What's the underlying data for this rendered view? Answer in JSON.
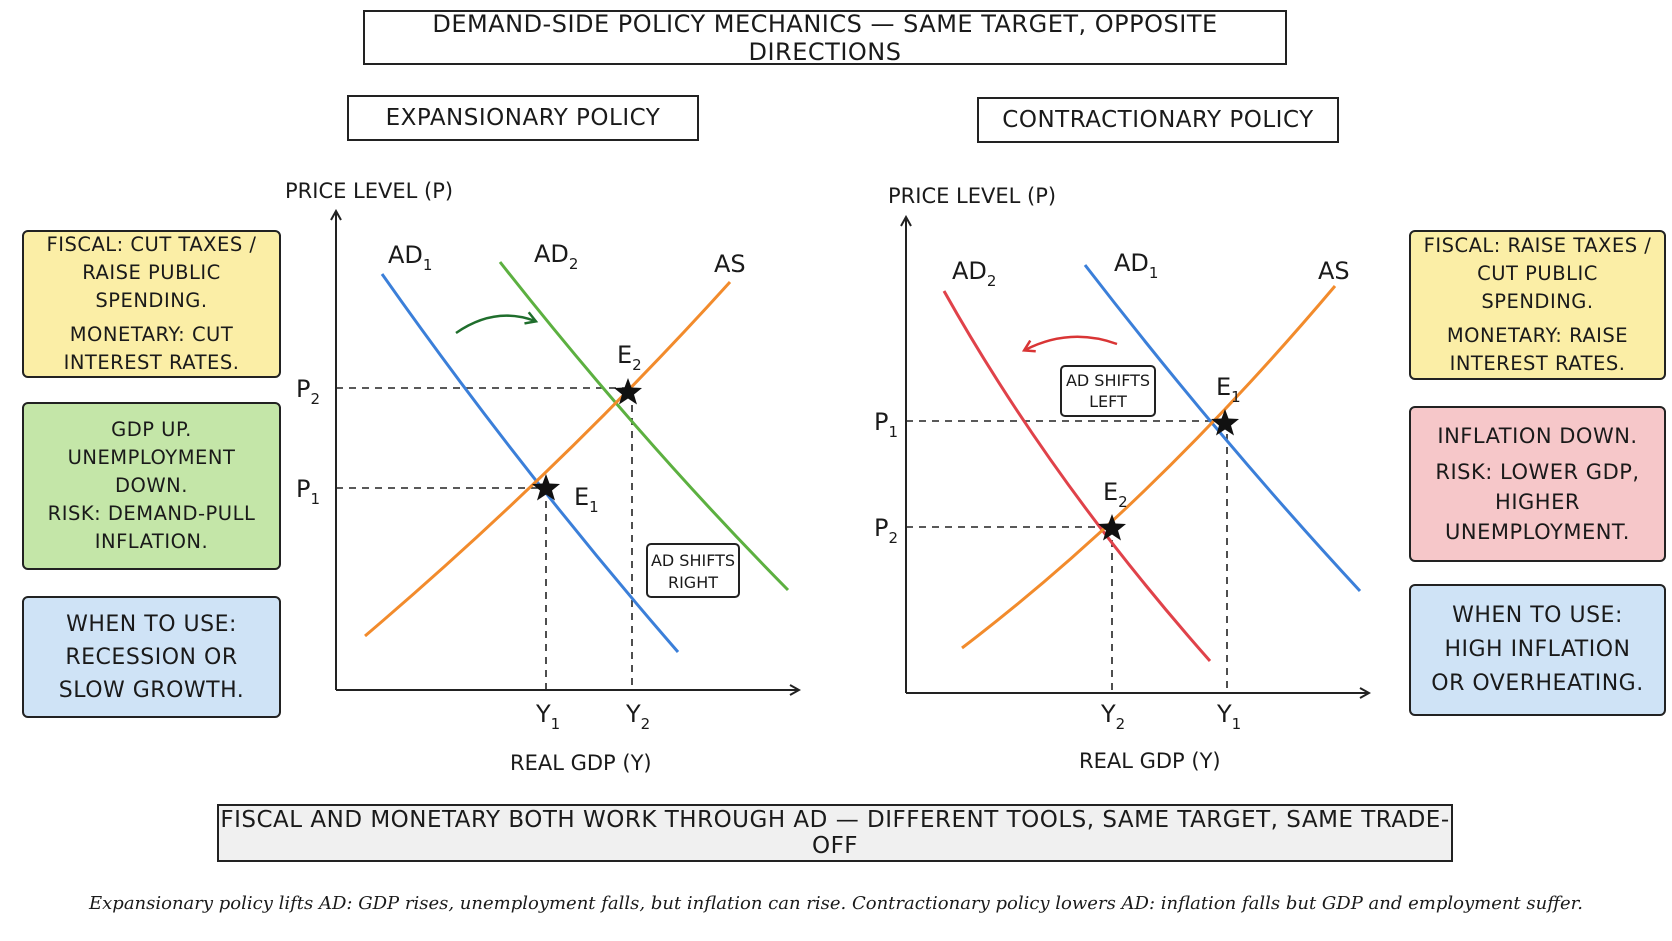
{
  "title": "DEMAND-SIDE POLICY MECHANICS — SAME TARGET, OPPOSITE DIRECTIONS",
  "panels": {
    "expansionary": {
      "title": "EXPANSIONARY POLICY",
      "y_axis_label": "PRICE LEVEL (P)",
      "x_axis_label": "REAL GDP (Y)",
      "curves": {
        "ad_old": "AD",
        "ad_old_sub": "1",
        "ad_new": "AD",
        "ad_new_sub": "2",
        "as": "AS"
      },
      "points": {
        "e_first": "E",
        "e_first_sub": "1",
        "e_second": "E",
        "e_second_sub": "2"
      },
      "ticks": {
        "p_low": "P",
        "p_low_sub": "1",
        "p_high": "P",
        "p_high_sub": "2",
        "y_left": "Y",
        "y_left_sub": "1",
        "y_right": "Y",
        "y_right_sub": "2"
      },
      "shift_label_line1": "AD SHIFTS",
      "shift_label_line2": "RIGHT",
      "notes": {
        "tools": [
          "FISCAL: CUT TAXES /",
          "RAISE PUBLIC SPENDING."
        ],
        "tools_monetary": [
          "MONETARY: CUT",
          "INTEREST RATES."
        ],
        "effects": [
          "GDP UP.",
          "UNEMPLOYMENT",
          "DOWN.",
          "RISK: DEMAND-PULL",
          "INFLATION."
        ],
        "when": [
          "WHEN TO USE:",
          "RECESSION OR",
          "SLOW GROWTH."
        ]
      }
    },
    "contractionary": {
      "title": "CONTRACTIONARY POLICY",
      "y_axis_label": "PRICE LEVEL (P)",
      "x_axis_label": "REAL GDP (Y)",
      "curves": {
        "ad_new": "AD",
        "ad_new_sub": "2",
        "ad_old": "AD",
        "ad_old_sub": "1",
        "as": "AS"
      },
      "points": {
        "e_first": "E",
        "e_first_sub": "1",
        "e_second": "E",
        "e_second_sub": "2"
      },
      "ticks": {
        "p_high": "P",
        "p_high_sub": "1",
        "p_low": "P",
        "p_low_sub": "2",
        "y_left": "Y",
        "y_left_sub": "2",
        "y_right": "Y",
        "y_right_sub": "1"
      },
      "shift_label_line1": "AD SHIFTS",
      "shift_label_line2": "LEFT",
      "notes": {
        "tools": [
          "FISCAL: RAISE TAXES /",
          "CUT PUBLIC SPENDING."
        ],
        "tools_monetary": [
          "MONETARY: RAISE",
          "INTEREST RATES."
        ],
        "effects": [
          "INFLATION DOWN.",
          "RISK: LOWER GDP,",
          "HIGHER",
          "UNEMPLOYMENT."
        ],
        "when": [
          "WHEN TO USE:",
          "HIGH INFLATION",
          "OR OVERHEATING."
        ]
      }
    }
  },
  "banner": "FISCAL AND MONETARY BOTH WORK THROUGH AD — DIFFERENT TOOLS, SAME TARGET, SAME TRADE-OFF",
  "caption": "Expansionary policy lifts AD: GDP rises, unemployment falls, but inflation can rise. Contractionary policy lowers AD: inflation falls but GDP and employment suffer.",
  "colors": {
    "as_curve": "#f28b2c",
    "ad1_curve": "#3b7fd9",
    "ad2_expansion": "#5cb040",
    "ad2_contraction": "#e0424a",
    "arrow_right": "#1f6e2c",
    "arrow_left": "#d93535",
    "note_yellow": "#fbeea6",
    "note_green": "#c4e6a8",
    "note_blue": "#cfe3f6",
    "note_red": "#f6c7c9"
  }
}
